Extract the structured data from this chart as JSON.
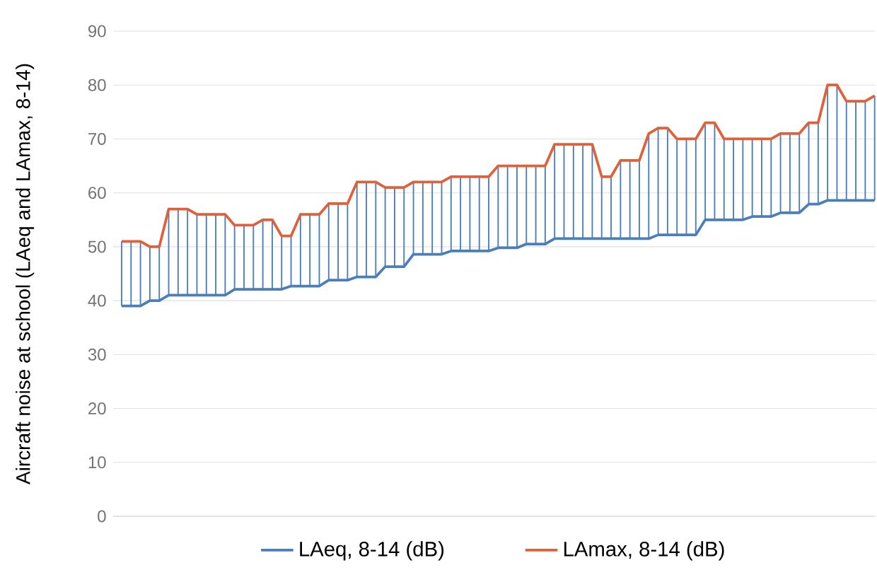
{
  "chart_data": {
    "type": "line",
    "ylabel": "Aircraft noise at school (LAeq and LAmax, 8-14)",
    "categories": [
      null,
      null,
      null,
      null,
      null,
      null,
      null,
      null,
      null,
      null,
      null,
      null,
      null,
      null,
      null,
      null,
      null,
      null,
      null,
      null,
      null,
      null,
      null,
      null,
      null,
      null,
      null,
      null,
      null,
      null,
      null,
      null,
      null,
      null,
      null,
      null,
      null,
      null,
      null,
      null,
      null,
      null,
      null,
      null,
      null,
      null,
      null,
      null,
      null,
      null,
      null,
      null,
      null,
      null,
      null,
      null,
      null,
      null,
      null,
      null,
      null,
      null,
      null,
      null,
      null,
      null,
      null,
      null,
      null,
      null,
      null,
      null,
      null,
      null,
      null,
      null,
      null,
      null,
      null,
      null,
      null
    ],
    "series": [
      {
        "name": "LAeq, 8-14 (dB)",
        "color": "#4a7ebb",
        "values": [
          39,
          39,
          39,
          40,
          40,
          41,
          41,
          41,
          41,
          41,
          41,
          41,
          42.1,
          42.1,
          42.1,
          42.1,
          42.1,
          42.1,
          42.7,
          42.7,
          42.7,
          42.7,
          43.8,
          43.8,
          43.8,
          44.4,
          44.4,
          44.4,
          46.3,
          46.3,
          46.3,
          48.6,
          48.6,
          48.6,
          48.6,
          49.2,
          49.2,
          49.2,
          49.2,
          49.2,
          49.8,
          49.8,
          49.8,
          50.5,
          50.5,
          50.5,
          51.5,
          51.5,
          51.5,
          51.5,
          51.5,
          51.5,
          51.5,
          51.5,
          51.5,
          51.5,
          51.5,
          52.2,
          52.2,
          52.2,
          52.2,
          52.2,
          55,
          55,
          55,
          55,
          55,
          55.6,
          55.6,
          55.6,
          56.3,
          56.3,
          56.3,
          57.9,
          57.9,
          58.6,
          58.6,
          58.6,
          58.6,
          58.6,
          58.6
        ]
      },
      {
        "name": "LAmax, 8-14 (dB)",
        "color": "#e0603a",
        "values": [
          51,
          51,
          51,
          50,
          50,
          57,
          57,
          57,
          56,
          56,
          56,
          56,
          54,
          54,
          54,
          55,
          55,
          52,
          52,
          56,
          56,
          56,
          58,
          58,
          58,
          62,
          62,
          62,
          61,
          61,
          61,
          62,
          62,
          62,
          62,
          63,
          63,
          63,
          63,
          63,
          65,
          65,
          65,
          65,
          65,
          65,
          69,
          69,
          69,
          69,
          69,
          63,
          63,
          66,
          66,
          66,
          71,
          72,
          72,
          70,
          70,
          70,
          73,
          73,
          70,
          70,
          70,
          70,
          70,
          70,
          71,
          71,
          71,
          73,
          73,
          80,
          80,
          77,
          77,
          77,
          78
        ],
        "errors": [
          [
            39,
            51
          ],
          [
            39,
            51
          ],
          [
            39,
            51
          ],
          [
            40,
            50
          ],
          [
            40,
            50
          ],
          [
            41,
            57
          ],
          [
            41,
            57
          ],
          [
            41,
            57
          ],
          [
            41,
            56
          ],
          [
            41,
            56
          ],
          [
            41,
            56
          ],
          [
            41,
            56
          ],
          [
            42.1,
            54
          ],
          [
            42.1,
            54
          ],
          [
            42.1,
            54
          ],
          [
            42.1,
            55
          ],
          [
            42.1,
            55
          ],
          [
            42.1,
            52
          ],
          [
            42.7,
            52
          ],
          [
            42.7,
            56
          ],
          [
            42.7,
            56
          ],
          [
            42.7,
            56
          ],
          [
            43.8,
            58
          ],
          [
            43.8,
            58
          ],
          [
            43.8,
            58
          ],
          [
            44.4,
            62
          ],
          [
            44.4,
            62
          ],
          [
            44.4,
            62
          ],
          [
            46.3,
            61
          ],
          [
            46.3,
            61
          ],
          [
            46.3,
            61
          ],
          [
            48.6,
            62
          ],
          [
            48.6,
            62
          ],
          [
            48.6,
            62
          ],
          [
            48.6,
            62
          ],
          [
            49.2,
            63
          ],
          [
            49.2,
            63
          ],
          [
            49.2,
            63
          ],
          [
            49.2,
            63
          ],
          [
            49.2,
            63
          ],
          [
            49.8,
            65
          ],
          [
            49.8,
            65
          ],
          [
            49.8,
            65
          ],
          [
            50.5,
            65
          ],
          [
            50.5,
            65
          ],
          [
            50.5,
            65
          ],
          [
            51.5,
            69
          ],
          [
            51.5,
            69
          ],
          [
            51.5,
            69
          ],
          [
            51.5,
            69
          ],
          [
            51.5,
            69
          ],
          [
            51.5,
            63
          ],
          [
            51.5,
            63
          ],
          [
            51.5,
            66
          ],
          [
            51.5,
            66
          ],
          [
            51.5,
            66
          ],
          [
            51.5,
            71
          ],
          [
            52.2,
            72
          ],
          [
            52.2,
            72
          ],
          [
            52.2,
            70
          ],
          [
            52.2,
            70
          ],
          [
            52.2,
            70
          ],
          [
            55,
            73
          ],
          [
            55,
            73
          ],
          [
            55,
            70
          ],
          [
            55,
            70
          ],
          [
            55,
            70
          ],
          [
            55.6,
            70
          ],
          [
            55.6,
            70
          ],
          [
            55.6,
            70
          ],
          [
            56.3,
            71
          ],
          [
            56.3,
            71
          ],
          [
            56.3,
            71
          ],
          [
            57.9,
            73
          ],
          [
            57.9,
            73
          ],
          [
            58.6,
            80
          ],
          [
            58.6,
            80
          ],
          [
            58.6,
            77
          ],
          [
            58.6,
            77
          ],
          [
            58.6,
            77
          ],
          [
            58.6,
            78
          ]
        ]
      }
    ],
    "ylim": [
      0,
      90
    ],
    "yticks": [
      0,
      10,
      20,
      30,
      40,
      50,
      60,
      70,
      80,
      90
    ],
    "grid": "y",
    "legend": "bottom",
    "marker": "none",
    "line_style": "solid"
  }
}
